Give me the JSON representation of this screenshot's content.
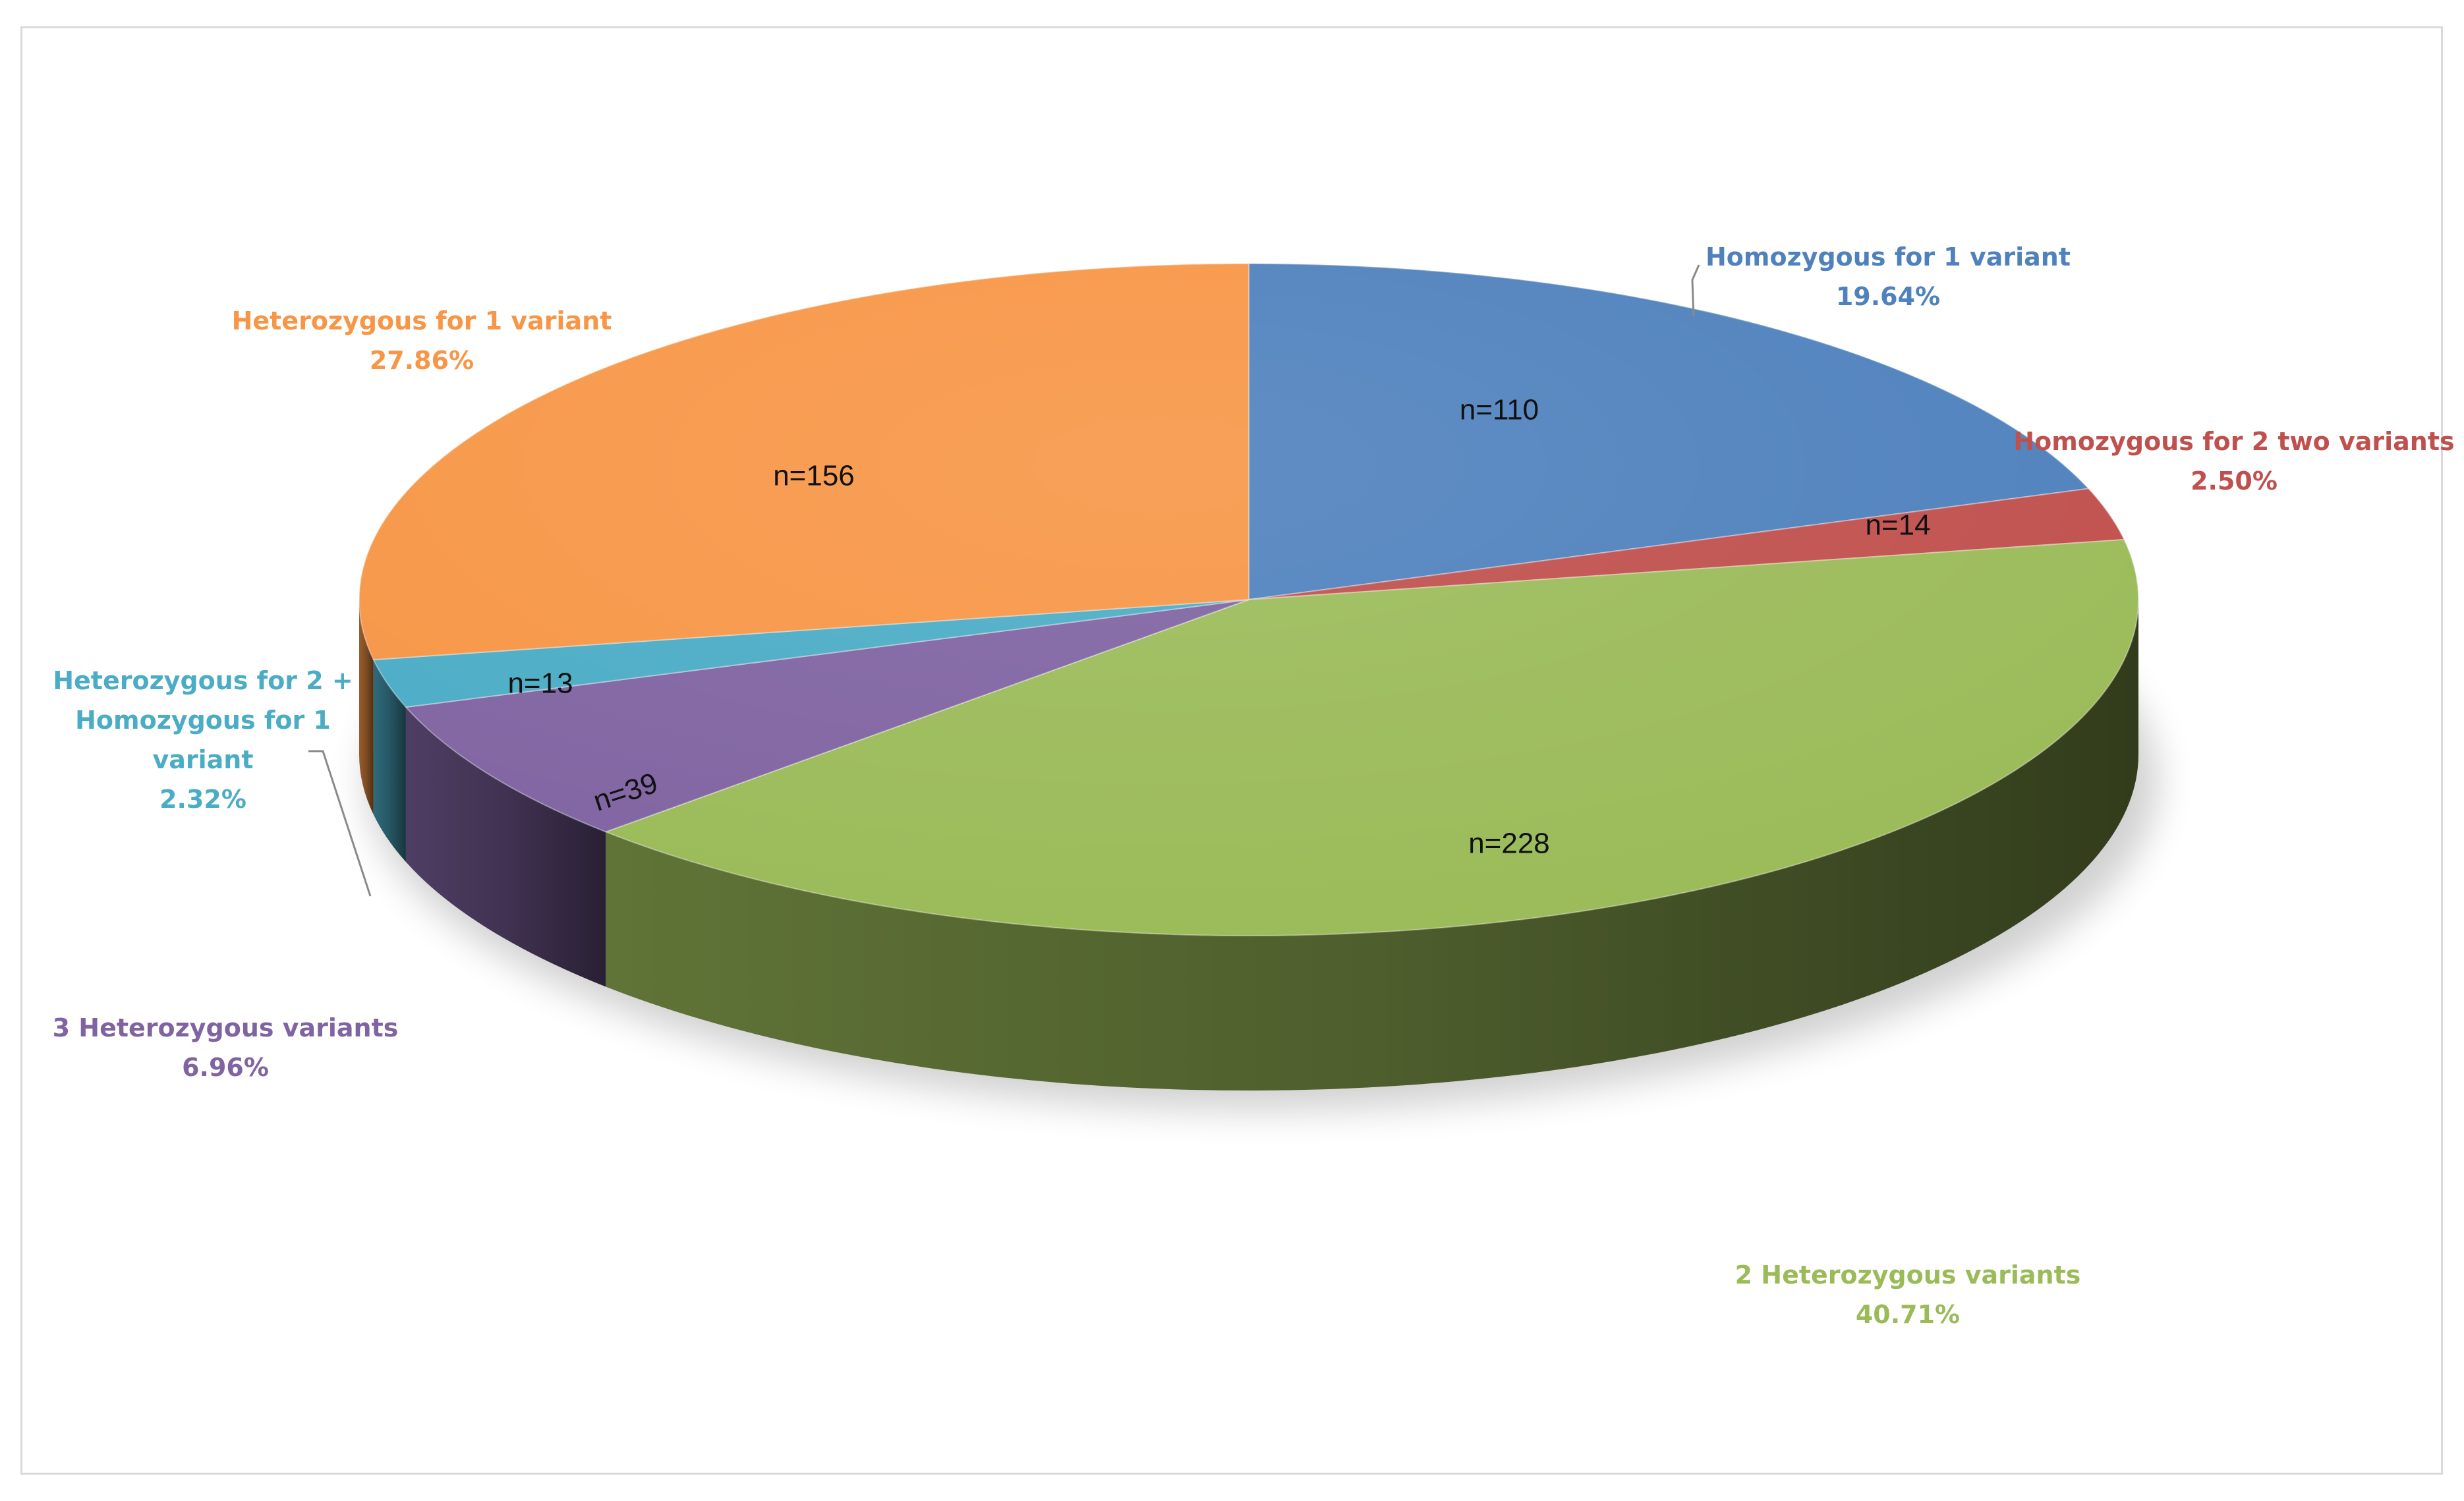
{
  "chart_data": {
    "type": "pie",
    "title": "",
    "slices": [
      {
        "label": "Homozygous for 1 variant",
        "percent_label": "19.64%",
        "percent": 19.64,
        "count": 110,
        "count_label": "n=110",
        "color": "#4f81bd"
      },
      {
        "label": "Homozygous for 2 two variants",
        "percent_label": "2.50%",
        "percent": 2.5,
        "count": 14,
        "count_label": "n=14",
        "color": "#c0504d"
      },
      {
        "label": "2 Heterozygous variants",
        "percent_label": "40.71%",
        "percent": 40.71,
        "count": 228,
        "count_label": "n=228",
        "color": "#9bbb59"
      },
      {
        "label": "3 Heterozygous variants",
        "percent_label": "6.96%",
        "percent": 6.96,
        "count": 39,
        "count_label": "n=39",
        "color": "#8064a2"
      },
      {
        "label": "Heterozygous for 2 + Homozygous for 1 variant",
        "percent_label": "2.32%",
        "percent": 2.32,
        "count": 13,
        "count_label": "n=13",
        "color": "#4bacc6"
      },
      {
        "label": "Heterozygous for 1 variant",
        "percent_label": "27.86%",
        "percent": 27.86,
        "count": 156,
        "count_label": "n=156",
        "color": "#f79646"
      }
    ]
  }
}
